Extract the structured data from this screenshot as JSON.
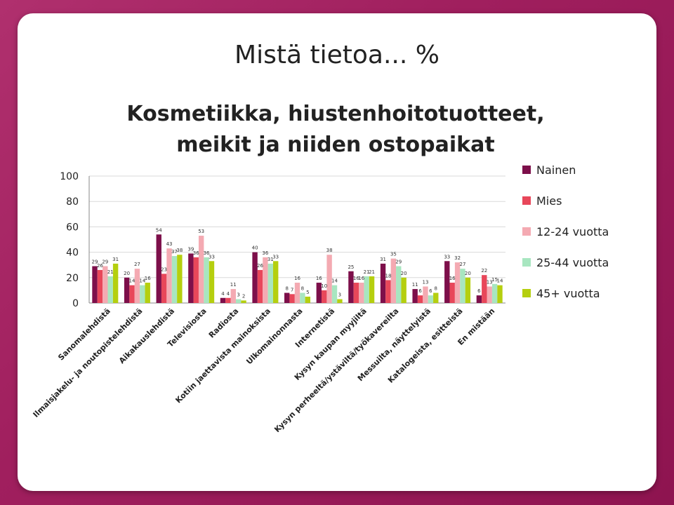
{
  "slide": {
    "title": "Mistä tietoa... %"
  },
  "chart_data": {
    "type": "bar",
    "title_lines": [
      "Kosmetiikka, hiustenhoitotuotteet,",
      "meikit ja niiden ostopaikat"
    ],
    "ylim": [
      0,
      100
    ],
    "yticks": [
      0,
      20,
      40,
      60,
      80,
      100
    ],
    "legend_position": "right",
    "categories": [
      "Sanomalehdistä",
      "Ilmaisjakelu- ja noutopistelehdistä",
      "Aikakauslehdistä",
      "Televisiosta",
      "Radiosta",
      "Kotiin jaettavista mainoksista",
      "Ulkomainonnasta",
      "Internetistä",
      "Kysyn kaupan myyjiltä",
      "Kysyn perheeltä/ystäviltä/työkavereilta",
      "Messuilta, näyttelyistä",
      "Katalogeista, esitteistä",
      "En mistään"
    ],
    "series": [
      {
        "name": "Nainen",
        "color": "#7d0f4a",
        "values": [
          29,
          20,
          54,
          39,
          4,
          40,
          8,
          16,
          25,
          31,
          11,
          33,
          6
        ]
      },
      {
        "name": "Mies",
        "color": "#e8475a",
        "values": [
          26,
          14,
          23,
          36,
          4,
          26,
          7,
          10,
          16,
          18,
          6,
          16,
          22
        ]
      },
      {
        "name": "12-24 vuotta",
        "color": "#f4aab2",
        "values": [
          29,
          27,
          43,
          53,
          11,
          36,
          16,
          38,
          16,
          35,
          13,
          32,
          13
        ]
      },
      {
        "name": "25-44 vuotta",
        "color": "#a8e6c0",
        "values": [
          21,
          14,
          37,
          36,
          3,
          31,
          8,
          14,
          21,
          29,
          6,
          27,
          15
        ]
      },
      {
        "name": "45+ vuotta",
        "color": "#b5cf0f",
        "values": [
          31,
          16,
          38,
          33,
          2,
          33,
          5,
          3,
          21,
          20,
          8,
          20,
          14
        ]
      }
    ]
  }
}
